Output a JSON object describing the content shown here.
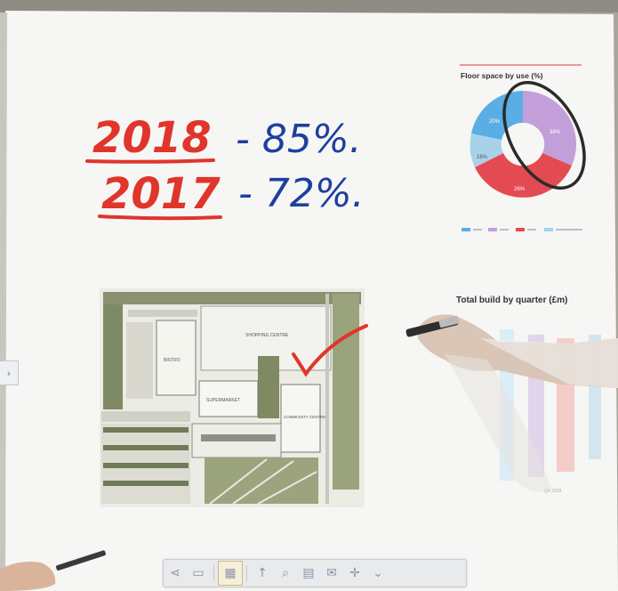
{
  "handwriting": {
    "line1_year": "2018",
    "line1_value": "- 85%.",
    "line2_year": "2017",
    "line2_value": "- 72%."
  },
  "donut_chart": {
    "title": "Floor space by use (%)",
    "slice_labels": [
      "20%",
      "38%",
      "16%",
      "26%"
    ],
    "colors": [
      "#c39fd9",
      "#e34a52",
      "#a8d2ea",
      "#5aaee3"
    ]
  },
  "bar_chart": {
    "title": "Total build by quarter (£m)",
    "footer": "Q4 2018"
  },
  "site_plan": {
    "labels": [
      "SHOPPING CENTRE",
      "BISTRO",
      "SUPERMARKET",
      "COMMUNITY CENTRE"
    ]
  },
  "toolbar": {
    "icons": [
      "share-icon",
      "window-icon",
      "pages-icon",
      "pen-icon",
      "zoom-icon",
      "save-icon",
      "email-icon",
      "tools-icon",
      "chevron-down-icon"
    ],
    "glyphs": [
      "⋖",
      "▭",
      "▦",
      "↑",
      "⌕",
      "▤",
      "✉",
      "✛",
      "⌄"
    ]
  },
  "side_tab": {
    "glyph": "›"
  },
  "colors": {
    "red_ink": "#e0352b",
    "blue_ink": "#1e3fa0",
    "board": "#f6f6f4"
  }
}
